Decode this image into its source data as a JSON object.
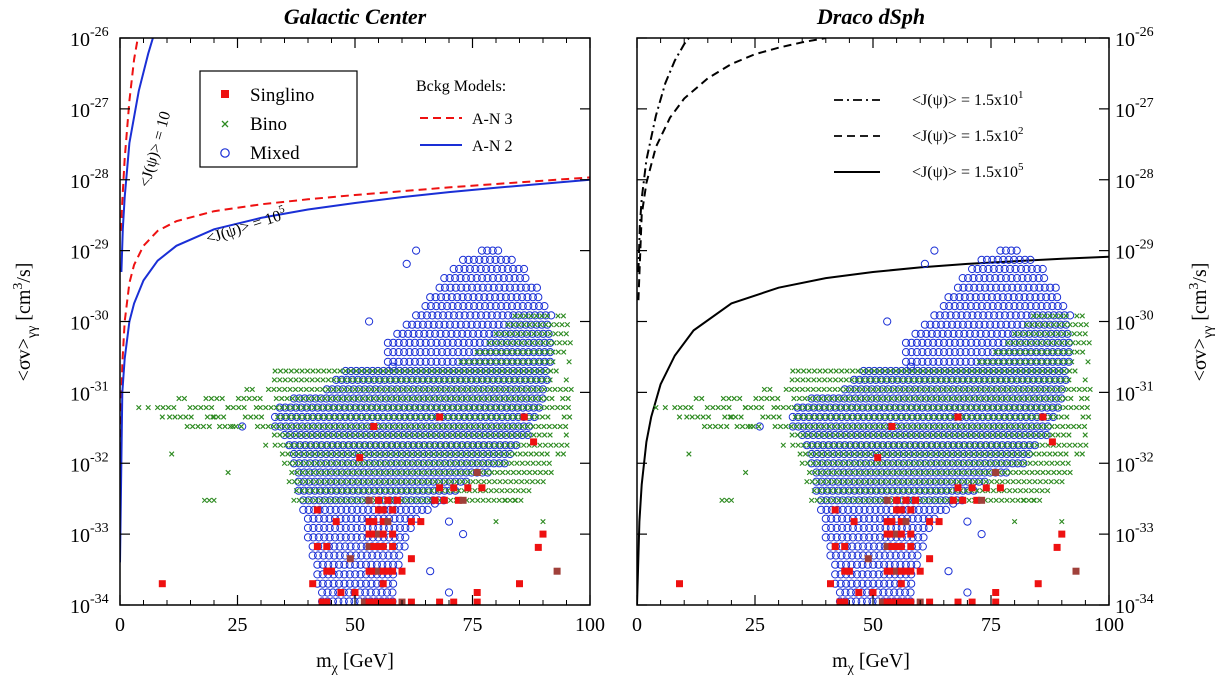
{
  "chart_data": [
    {
      "type": "scatter",
      "title": "Galactic Center",
      "xlabel": "m_χ [GeV]",
      "ylabel": "<σv>_γγ [cm³/s]",
      "xlim": [
        0,
        100
      ],
      "ylim": [
        1e-34,
        1e-26
      ],
      "yscale": "log",
      "x_ticks": [
        "0",
        "25",
        "50",
        "75",
        "100"
      ],
      "y_ticks": [
        {
          "base": "10",
          "exp": "-34"
        },
        {
          "base": "10",
          "exp": "-33"
        },
        {
          "base": "10",
          "exp": "-32"
        },
        {
          "base": "10",
          "exp": "-31"
        },
        {
          "base": "10",
          "exp": "-30"
        },
        {
          "base": "10",
          "exp": "-29"
        },
        {
          "base": "10",
          "exp": "-28"
        },
        {
          "base": "10",
          "exp": "-27"
        },
        {
          "base": "10",
          "exp": "-26"
        }
      ],
      "legend": {
        "placement": "top-left",
        "entries": [
          {
            "label": "Singlino",
            "marker": "square",
            "color": "#ee1111"
          },
          {
            "label": "Bino",
            "marker": "x",
            "color": "#2e8b22"
          },
          {
            "label": "Mixed",
            "marker": "circle",
            "color": "#1a2fd6"
          }
        ]
      },
      "legend2": {
        "title": "Bckg Models:",
        "entries": [
          {
            "label": "A-N 3",
            "style": "dashed",
            "color": "#ee1111"
          },
          {
            "label": "A-N 2",
            "style": "solid",
            "color": "#1a2fd6"
          }
        ]
      },
      "annotations": [
        {
          "base": "<J(ψ)> = 10",
          "exp": "",
          "near_curve": "J=10"
        },
        {
          "base": "<J(ψ)> = 10",
          "exp": "5",
          "near_curve": "J=1e5"
        }
      ],
      "series": [
        {
          "name": "A-N 3",
          "kind": "line",
          "color": "#ee1111",
          "dash": true,
          "x": [
            0.2,
            0.5,
            1,
            2,
            3,
            4
          ],
          "y": [
            1.9e-29,
            5e-29,
            2e-28,
            1.3e-27,
            5e-27,
            1.2e-26
          ]
        },
        {
          "name": "A-N 2",
          "kind": "line",
          "color": "#1a2fd6",
          "dash": false,
          "x": [
            0.3,
            0.6,
            1,
            2,
            4,
            6,
            7
          ],
          "y": [
            5e-30,
            2e-29,
            5.7e-29,
            3.3e-28,
            1.8e-27,
            6e-27,
            1e-26
          ]
        },
        {
          "name": "A-N 3",
          "kind": "line",
          "color": "#ee1111",
          "dash": true,
          "x": [
            0,
            0.5,
            1,
            2,
            3,
            5,
            8,
            12,
            20,
            30,
            40,
            50,
            60,
            70,
            80,
            90,
            100
          ],
          "y": [
            1e-32,
            2.5e-31,
            1e-30,
            3.5e-30,
            6.3e-30,
            1.17e-29,
            1.9e-29,
            2.6e-29,
            3.6e-29,
            4.5e-29,
            5.3e-29,
            6.1e-29,
            6.9e-29,
            7.8e-29,
            8.7e-29,
            9.7e-29,
            1.08e-28
          ]
        },
        {
          "name": "A-N 2",
          "kind": "line",
          "color": "#1a2fd6",
          "dash": false,
          "x": [
            0,
            0.5,
            1,
            2,
            3,
            5,
            8,
            12,
            20,
            30,
            40,
            50,
            60,
            70,
            80,
            90,
            100
          ],
          "y": [
            4e-34,
            1e-31,
            3e-31,
            1e-30,
            1.8e-30,
            3.8e-30,
            7.2e-30,
            1.17e-29,
            2e-29,
            2.9e-29,
            3.8e-29,
            4.7e-29,
            5.7e-29,
            6.7e-29,
            7.7e-29,
            8.8e-29,
            1e-28
          ]
        }
      ]
    },
    {
      "type": "scatter",
      "title": "Draco dSph",
      "xlabel": "m_χ [GeV]",
      "ylabel": "<σv>_γγ [cm³/s]",
      "xlim": [
        0,
        100
      ],
      "ylim": [
        1e-34,
        1e-26
      ],
      "yscale": "log",
      "x_ticks": [
        "0",
        "25",
        "50",
        "75",
        "100"
      ],
      "y_ticks": [
        {
          "base": "10",
          "exp": "-34"
        },
        {
          "base": "10",
          "exp": "-33"
        },
        {
          "base": "10",
          "exp": "-32"
        },
        {
          "base": "10",
          "exp": "-31"
        },
        {
          "base": "10",
          "exp": "-30"
        },
        {
          "base": "10",
          "exp": "-29"
        },
        {
          "base": "10",
          "exp": "-28"
        },
        {
          "base": "10",
          "exp": "-27"
        },
        {
          "base": "10",
          "exp": "-26"
        }
      ],
      "legend": {
        "placement": "top-right",
        "entries": [
          {
            "base": "<J(ψ)> = 1.5x10",
            "exp": "1",
            "style": "dashdot"
          },
          {
            "base": "<J(ψ)> = 1.5x10",
            "exp": "2",
            "style": "dashed"
          },
          {
            "base": "<J(ψ)> = 1.5x10",
            "exp": "5",
            "style": "solid"
          }
        ]
      },
      "series": [
        {
          "name": "<J(ψ)> = 1.5x10^1",
          "kind": "line",
          "color": "#000000",
          "style": "dashdot",
          "x": [
            0.3,
            0.6,
            1,
            2,
            4,
            6,
            8,
            10,
            11
          ],
          "y": [
            5e-30,
            2.2e-29,
            5.4e-29,
            1.9e-28,
            8e-28,
            2.3e-27,
            4.8e-27,
            8.2e-27,
            1e-26
          ]
        },
        {
          "name": "<J(ψ)> = 1.5x10^2",
          "kind": "line",
          "color": "#000000",
          "style": "dashed",
          "x": [
            0.3,
            1,
            2,
            4,
            7,
            10,
            15,
            20,
            25,
            30,
            35,
            40
          ],
          "y": [
            2e-30,
            3.2e-29,
            9e-29,
            2.9e-28,
            7.5e-28,
            1.4e-27,
            2.7e-27,
            4.3e-27,
            5.9e-27,
            7.3e-27,
            8.7e-27,
            1e-26
          ]
        },
        {
          "name": "<J(ψ)> = 1.5x10^5",
          "kind": "line",
          "color": "#000000",
          "style": "solid",
          "x": [
            0,
            0.5,
            1,
            2,
            3,
            5,
            8,
            12,
            20,
            30,
            40,
            50,
            60,
            70,
            80,
            90,
            100
          ],
          "y": [
            1e-34,
            1.5e-33,
            5e-33,
            2e-32,
            4.5e-32,
            1.3e-31,
            3.3e-31,
            7.5e-31,
            1.8e-30,
            3e-30,
            4.1e-30,
            5e-30,
            5.8e-30,
            6.5e-30,
            7.1e-30,
            7.7e-30,
            8.2e-30
          ]
        }
      ]
    }
  ],
  "scan": {
    "mixed_rows": [
      {
        "y": 1e-29,
        "x0": 77,
        "x1": 81
      },
      {
        "y": 7.4e-30,
        "x0": 73,
        "x1": 84
      },
      {
        "y": 5.5e-30,
        "x0": 71,
        "x1": 86
      },
      {
        "y": 4.1e-30,
        "x0": 69,
        "x1": 87
      },
      {
        "y": 3e-30,
        "x0": 68,
        "x1": 89
      },
      {
        "y": 2.2e-30,
        "x0": 66,
        "x1": 90
      },
      {
        "y": 1.65e-30,
        "x0": 65,
        "x1": 91
      },
      {
        "y": 1.22e-30,
        "x0": 63,
        "x1": 92
      },
      {
        "y": 9e-31,
        "x0": 61,
        "x1": 92
      },
      {
        "y": 6.7e-31,
        "x0": 59,
        "x1": 92
      },
      {
        "y": 5e-31,
        "x0": 57,
        "x1": 92
      },
      {
        "y": 3.7e-31,
        "x0": 57,
        "x1": 92
      },
      {
        "y": 2.7e-31,
        "x0": 57,
        "x1": 92
      },
      {
        "y": 2e-31,
        "x0": 48,
        "x1": 91
      },
      {
        "y": 1.5e-31,
        "x0": 46,
        "x1": 91
      },
      {
        "y": 1.1e-31,
        "x0": 44,
        "x1": 91
      },
      {
        "y": 8.2e-32,
        "x0": 37,
        "x1": 90
      },
      {
        "y": 6.1e-32,
        "x0": 34,
        "x1": 90
      },
      {
        "y": 4.5e-32,
        "x0": 33,
        "x1": 89
      },
      {
        "y": 3.3e-32,
        "x0": 33,
        "x1": 88
      },
      {
        "y": 2.5e-32,
        "x0": 35,
        "x1": 87
      },
      {
        "y": 1.8e-32,
        "x0": 36,
        "x1": 85
      },
      {
        "y": 1.35e-32,
        "x0": 37,
        "x1": 84
      },
      {
        "y": 1e-32,
        "x0": 37,
        "x1": 82
      },
      {
        "y": 7.4e-33,
        "x0": 38,
        "x1": 79
      },
      {
        "y": 5.5e-33,
        "x0": 38,
        "x1": 74
      },
      {
        "y": 4.1e-33,
        "x0": 38,
        "x1": 72
      },
      {
        "y": 3e-33,
        "x0": 39,
        "x1": 70
      },
      {
        "y": 2.2e-33,
        "x0": 39,
        "x1": 66
      },
      {
        "y": 1.65e-33,
        "x0": 40,
        "x1": 64
      },
      {
        "y": 1.22e-33,
        "x0": 40,
        "x1": 62
      },
      {
        "y": 9e-34,
        "x0": 40,
        "x1": 61
      },
      {
        "y": 6.7e-34,
        "x0": 41,
        "x1": 61
      },
      {
        "y": 5e-34,
        "x0": 41,
        "x1": 60
      },
      {
        "y": 3.7e-34,
        "x0": 42,
        "x1": 60
      },
      {
        "y": 2.7e-34,
        "x0": 42,
        "x1": 59
      },
      {
        "y": 2e-34,
        "x0": 42,
        "x1": 59
      },
      {
        "y": 1.5e-34,
        "x0": 43,
        "x1": 58
      },
      {
        "y": 1.12e-34,
        "x0": 43,
        "x1": 58
      }
    ],
    "bino_rows": [
      {
        "y": 1.2e-30,
        "x0": 84,
        "x1": 95
      },
      {
        "y": 9e-31,
        "x0": 82,
        "x1": 96
      },
      {
        "y": 6.7e-31,
        "x0": 80,
        "x1": 96
      },
      {
        "y": 5e-31,
        "x0": 78,
        "x1": 97
      },
      {
        "y": 3.7e-31,
        "x0": 76,
        "x1": 97
      },
      {
        "y": 2.7e-31,
        "x0": 72,
        "x1": 96
      },
      {
        "y": 2e-31,
        "x0": 33,
        "x1": 96
      },
      {
        "y": 1.5e-31,
        "x0": 30,
        "x1": 96
      },
      {
        "y": 1.1e-31,
        "x0": 27,
        "x1": 96
      },
      {
        "y": 8.2e-32,
        "x0": 12,
        "x1": 96
      },
      {
        "y": 6.1e-32,
        "x0": 8,
        "x1": 96
      },
      {
        "y": 4.5e-32,
        "x0": 10,
        "x1": 96
      },
      {
        "y": 3.3e-32,
        "x0": 12,
        "x1": 96
      },
      {
        "y": 2.5e-32,
        "x0": 30,
        "x1": 96
      },
      {
        "y": 1.8e-32,
        "x0": 33,
        "x1": 96
      },
      {
        "y": 1.35e-32,
        "x0": 34,
        "x1": 95
      },
      {
        "y": 1e-32,
        "x0": 35,
        "x1": 94
      },
      {
        "y": 7.4e-33,
        "x0": 36,
        "x1": 92
      },
      {
        "y": 5.5e-33,
        "x0": 36,
        "x1": 91
      },
      {
        "y": 4.1e-33,
        "x0": 37,
        "x1": 88
      },
      {
        "y": 3e-33,
        "x0": 37,
        "x1": 86
      }
    ],
    "bino_extra": [
      [
        4,
        6.1e-32
      ],
      [
        6,
        6.1e-32
      ],
      [
        9,
        4.5e-32
      ],
      [
        20,
        4.5e-32
      ],
      [
        19,
        3.3e-32
      ],
      [
        11,
        1.35e-32
      ],
      [
        23,
        6.1e-32
      ],
      [
        24,
        3.3e-32
      ],
      [
        29,
        6.1e-32
      ],
      [
        31,
        1.8e-32
      ],
      [
        23,
        7.4e-33
      ],
      [
        18,
        3e-33
      ],
      [
        19,
        3e-33
      ],
      [
        20,
        3e-33
      ],
      [
        80,
        1.5e-33
      ],
      [
        90,
        1.5e-33
      ],
      [
        82,
        3e-33
      ],
      [
        84,
        3e-33
      ]
    ],
    "mixed_extra": [
      [
        58,
        2.3e-31
      ],
      [
        63,
        1e-29
      ],
      [
        61,
        6.5e-30
      ],
      [
        53,
        1e-30
      ],
      [
        26,
        3.3e-32
      ],
      [
        67,
        2.7e-33
      ],
      [
        70,
        1.5e-33
      ],
      [
        73,
        1e-33
      ],
      [
        66,
        3e-34
      ],
      [
        70,
        1.5e-34
      ]
    ],
    "singlino": [
      [
        9,
        2e-34
      ],
      [
        43,
        1.1e-34
      ],
      [
        44,
        1.1e-34
      ],
      [
        52,
        1.1e-34
      ],
      [
        53,
        1.1e-34
      ],
      [
        54,
        1.1e-34
      ],
      [
        55,
        1.1e-34
      ],
      [
        56,
        1.1e-34
      ],
      [
        57,
        1.1e-34
      ],
      [
        58,
        1.1e-34
      ],
      [
        60,
        1.1e-34
      ],
      [
        62,
        1.1e-34
      ],
      [
        68,
        1.1e-34
      ],
      [
        71,
        1.1e-34
      ],
      [
        76,
        1.1e-34
      ],
      [
        76,
        1.5e-34
      ],
      [
        85,
        2e-34
      ],
      [
        93,
        3e-34
      ],
      [
        89,
        6.5e-34
      ],
      [
        90,
        1e-33
      ],
      [
        44,
        3e-34
      ],
      [
        45,
        3e-34
      ],
      [
        53,
        3e-34
      ],
      [
        54,
        3e-34
      ],
      [
        55,
        3e-34
      ],
      [
        56,
        3e-34
      ],
      [
        57,
        3e-34
      ],
      [
        58,
        3e-34
      ],
      [
        60,
        3e-34
      ],
      [
        42,
        6.7e-34
      ],
      [
        44,
        6.7e-34
      ],
      [
        53,
        6.7e-34
      ],
      [
        54,
        6.7e-34
      ],
      [
        55,
        6.7e-34
      ],
      [
        56,
        6.7e-34
      ],
      [
        58,
        6.7e-34
      ],
      [
        53,
        1e-33
      ],
      [
        54,
        1e-33
      ],
      [
        55,
        1e-33
      ],
      [
        56,
        1e-33
      ],
      [
        58,
        1e-33
      ],
      [
        46,
        1.5e-33
      ],
      [
        53,
        1.5e-33
      ],
      [
        54,
        1.5e-33
      ],
      [
        56,
        1.5e-33
      ],
      [
        57,
        1.5e-33
      ],
      [
        62,
        1.5e-33
      ],
      [
        64,
        1.5e-33
      ],
      [
        42,
        2.2e-33
      ],
      [
        55,
        2.2e-33
      ],
      [
        56,
        2.2e-33
      ],
      [
        58,
        2.2e-33
      ],
      [
        53,
        3e-33
      ],
      [
        55,
        3e-33
      ],
      [
        57,
        3e-33
      ],
      [
        59,
        3e-33
      ],
      [
        67,
        3e-33
      ],
      [
        69,
        3e-33
      ],
      [
        72,
        3e-33
      ],
      [
        73,
        3e-33
      ],
      [
        68,
        4.5e-33
      ],
      [
        71,
        4.5e-33
      ],
      [
        74,
        4.5e-33
      ],
      [
        77,
        4.5e-33
      ],
      [
        56,
        2e-34
      ],
      [
        41,
        2e-34
      ],
      [
        49,
        4.5e-34
      ],
      [
        62,
        4.5e-34
      ],
      [
        51,
        1.2e-32
      ],
      [
        68,
        4.5e-32
      ],
      [
        54,
        3.3e-32
      ],
      [
        86,
        4.5e-32
      ],
      [
        88,
        2e-32
      ],
      [
        76,
        7.4e-33
      ],
      [
        47,
        1.5e-34
      ],
      [
        50,
        1.5e-34
      ]
    ],
    "mixed_color": "#1a2fd6",
    "bino_color": "#2e8b22",
    "singlino_color": "#ee1111",
    "overlap_color": "#a0403a"
  }
}
